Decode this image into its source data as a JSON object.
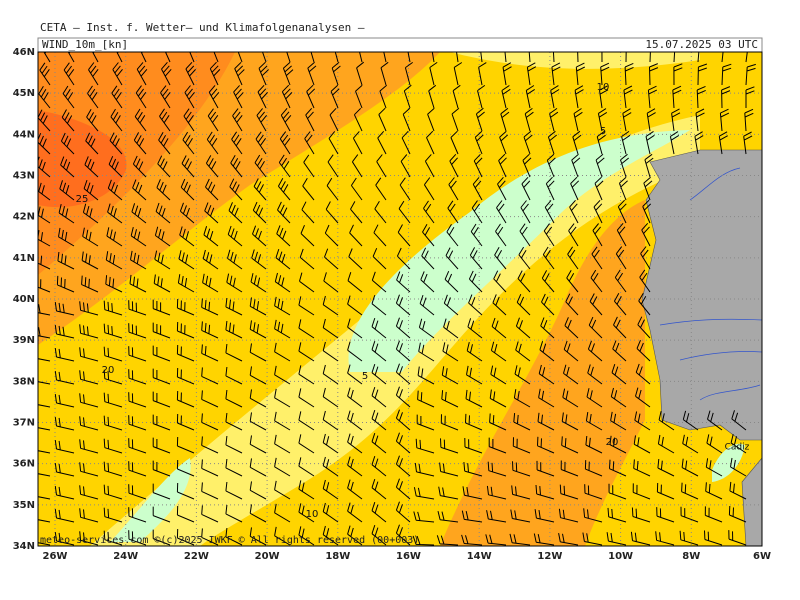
{
  "header": {
    "title": "CETA – Inst. f. Wetter– und Klimafolgenanalysen –",
    "parameter": "WIND_10m_[kn]",
    "valid_time": "15.07.2025 03 UTC"
  },
  "map": {
    "lat_labels": [
      "46N",
      "45N",
      "44N",
      "43N",
      "42N",
      "41N",
      "40N",
      "39N",
      "38N",
      "37N",
      "36N",
      "35N",
      "34N"
    ],
    "lon_labels": [
      "26W",
      "24W",
      "22W",
      "20W",
      "18W",
      "16W",
      "14W",
      "12W",
      "10W",
      "8W",
      "6W"
    ],
    "contour_labels": [
      "25",
      "20",
      "5",
      "10",
      "5",
      "20",
      "10"
    ],
    "place_labels": [
      "Cadiz"
    ]
  },
  "footer": {
    "copyright": "meteo-services.com ©(c)2025 IWKF © All rights reserved (00+003)"
  }
}
